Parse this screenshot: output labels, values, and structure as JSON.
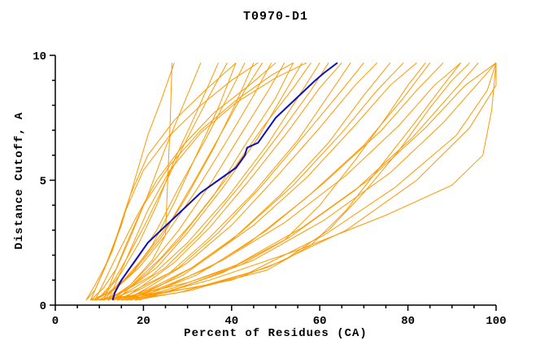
{
  "chart_data": {
    "type": "line",
    "title": "T0970-D1",
    "xlabel": "Percent of Residues (CA)",
    "ylabel": "Distance Cutoff, A",
    "xlim": [
      0,
      100
    ],
    "ylim": [
      0,
      10
    ],
    "xticks": {
      "major": [
        0,
        20,
        40,
        60,
        80,
        100
      ],
      "minor_step": 5
    },
    "yticks": {
      "major": [
        0,
        5,
        10
      ],
      "minor_step": 1
    },
    "grid": false,
    "legend": null,
    "series_color": "#ff9900",
    "highlight_color": "#0f0fbb",
    "axis_color": "#000000",
    "background_color": "#ffffff",
    "curves": [
      [
        [
          7,
          0.2
        ],
        [
          9,
          0.8
        ],
        [
          12,
          1.8
        ],
        [
          15,
          3.2
        ],
        [
          18,
          5.0
        ],
        [
          21,
          6.8
        ],
        [
          24,
          8.2
        ],
        [
          27,
          9.7
        ]
      ],
      [
        [
          8,
          0.2
        ],
        [
          11,
          0.7
        ],
        [
          14,
          1.5
        ],
        [
          17,
          2.7
        ],
        [
          21,
          4.4
        ],
        [
          25,
          6.3
        ],
        [
          29,
          8.0
        ],
        [
          33,
          9.7
        ]
      ],
      [
        [
          9,
          0.2
        ],
        [
          12,
          0.6
        ],
        [
          15,
          1.3
        ],
        [
          19,
          2.5
        ],
        [
          23,
          4.0
        ],
        [
          27,
          5.8
        ],
        [
          32,
          7.7
        ],
        [
          37,
          9.7
        ]
      ],
      [
        [
          10,
          0.3
        ],
        [
          13,
          0.9
        ],
        [
          16,
          1.8
        ],
        [
          20,
          3.1
        ],
        [
          25,
          4.9
        ],
        [
          30,
          6.7
        ],
        [
          35,
          8.4
        ],
        [
          39,
          9.7
        ]
      ],
      [
        [
          8,
          0.2
        ],
        [
          12,
          0.5
        ],
        [
          17,
          1.2
        ],
        [
          22,
          2.4
        ],
        [
          27,
          4.1
        ],
        [
          32,
          6.0
        ],
        [
          37,
          7.9
        ],
        [
          41,
          9.7
        ]
      ],
      [
        [
          11,
          0.2
        ],
        [
          14,
          0.8
        ],
        [
          18,
          1.7
        ],
        [
          23,
          3.0
        ],
        [
          28,
          4.7
        ],
        [
          34,
          6.6
        ],
        [
          39,
          8.3
        ],
        [
          43,
          9.7
        ]
      ],
      [
        [
          9,
          0.2
        ],
        [
          13,
          0.6
        ],
        [
          18,
          1.4
        ],
        [
          24,
          2.7
        ],
        [
          30,
          4.4
        ],
        [
          36,
          6.3
        ],
        [
          41,
          8.1
        ],
        [
          45,
          9.7
        ]
      ],
      [
        [
          12,
          0.2
        ],
        [
          15,
          0.9
        ],
        [
          20,
          1.9
        ],
        [
          26,
          3.3
        ],
        [
          32,
          5.1
        ],
        [
          38,
          7.0
        ],
        [
          43,
          8.6
        ],
        [
          47,
          9.7
        ]
      ],
      [
        [
          10,
          0.2
        ],
        [
          14,
          0.7
        ],
        [
          19,
          1.5
        ],
        [
          25,
          2.8
        ],
        [
          32,
          4.6
        ],
        [
          39,
          6.6
        ],
        [
          45,
          8.4
        ],
        [
          49,
          9.7
        ]
      ],
      [
        [
          13,
          0.2
        ],
        [
          17,
          0.8
        ],
        [
          22,
          1.7
        ],
        [
          28,
          3.0
        ],
        [
          35,
          4.8
        ],
        [
          42,
          6.8
        ],
        [
          48,
          8.5
        ],
        [
          52,
          9.7
        ]
      ],
      [
        [
          11,
          0.2
        ],
        [
          16,
          0.6
        ],
        [
          21,
          1.3
        ],
        [
          28,
          2.6
        ],
        [
          36,
          4.4
        ],
        [
          43,
          6.4
        ],
        [
          50,
          8.3
        ],
        [
          54,
          9.7
        ]
      ],
      [
        [
          12,
          0.2
        ],
        [
          17,
          0.7
        ],
        [
          23,
          1.5
        ],
        [
          30,
          2.9
        ],
        [
          38,
          4.7
        ],
        [
          46,
          6.7
        ],
        [
          52,
          8.5
        ],
        [
          56,
          9.7
        ]
      ],
      [
        [
          14,
          0.2
        ],
        [
          18,
          0.9
        ],
        [
          24,
          1.9
        ],
        [
          31,
          3.3
        ],
        [
          39,
          5.1
        ],
        [
          47,
          7.1
        ],
        [
          54,
          8.7
        ],
        [
          58,
          9.7
        ]
      ],
      [
        [
          10,
          0.2
        ],
        [
          15,
          0.5
        ],
        [
          22,
          1.2
        ],
        [
          30,
          2.5
        ],
        [
          39,
          4.3
        ],
        [
          48,
          6.4
        ],
        [
          55,
          8.3
        ],
        [
          60,
          9.7
        ]
      ],
      [
        [
          13,
          0.2
        ],
        [
          18,
          0.7
        ],
        [
          25,
          1.5
        ],
        [
          33,
          2.9
        ],
        [
          42,
          4.8
        ],
        [
          51,
          6.9
        ],
        [
          58,
          8.6
        ],
        [
          62,
          9.7
        ]
      ],
      [
        [
          15,
          0.2
        ],
        [
          20,
          0.8
        ],
        [
          27,
          1.7
        ],
        [
          35,
          3.1
        ],
        [
          44,
          5.0
        ],
        [
          53,
          7.0
        ],
        [
          60,
          8.7
        ],
        [
          65,
          9.7
        ]
      ],
      [
        [
          12,
          0.2
        ],
        [
          18,
          0.6
        ],
        [
          26,
          1.3
        ],
        [
          35,
          2.7
        ],
        [
          45,
          4.5
        ],
        [
          55,
          6.6
        ],
        [
          62,
          8.4
        ],
        [
          67,
          9.7
        ]
      ],
      [
        [
          14,
          0.2
        ],
        [
          20,
          0.7
        ],
        [
          28,
          1.5
        ],
        [
          37,
          2.9
        ],
        [
          47,
          4.8
        ],
        [
          57,
          6.9
        ],
        [
          65,
          8.6
        ],
        [
          70,
          9.7
        ]
      ],
      [
        [
          16,
          0.2
        ],
        [
          22,
          0.8
        ],
        [
          30,
          1.7
        ],
        [
          40,
          3.2
        ],
        [
          50,
          5.1
        ],
        [
          60,
          7.1
        ],
        [
          68,
          8.8
        ],
        [
          73,
          9.7
        ]
      ],
      [
        [
          13,
          0.2
        ],
        [
          20,
          0.5
        ],
        [
          29,
          1.2
        ],
        [
          40,
          2.6
        ],
        [
          51,
          4.4
        ],
        [
          62,
          6.5
        ],
        [
          70,
          8.4
        ],
        [
          76,
          9.7
        ]
      ],
      [
        [
          15,
          0.2
        ],
        [
          22,
          0.7
        ],
        [
          31,
          1.5
        ],
        [
          42,
          2.9
        ],
        [
          54,
          4.8
        ],
        [
          65,
          6.9
        ],
        [
          73,
          8.6
        ],
        [
          79,
          9.7
        ]
      ],
      [
        [
          17,
          0.2
        ],
        [
          24,
          0.8
        ],
        [
          33,
          1.7
        ],
        [
          45,
          3.2
        ],
        [
          57,
          5.1
        ],
        [
          68,
          7.2
        ],
        [
          76,
          8.8
        ],
        [
          82,
          9.7
        ]
      ],
      [
        [
          14,
          0.2
        ],
        [
          22,
          0.5
        ],
        [
          32,
          1.2
        ],
        [
          44,
          2.5
        ],
        [
          57,
          4.3
        ],
        [
          70,
          6.4
        ],
        [
          79,
          8.3
        ],
        [
          85,
          9.7
        ]
      ],
      [
        [
          16,
          0.2
        ],
        [
          24,
          0.7
        ],
        [
          35,
          1.5
        ],
        [
          48,
          3.0
        ],
        [
          61,
          4.9
        ],
        [
          74,
          7.0
        ],
        [
          82,
          8.6
        ],
        [
          88,
          9.7
        ]
      ],
      [
        [
          18,
          0.2
        ],
        [
          26,
          0.8
        ],
        [
          38,
          1.8
        ],
        [
          52,
          3.3
        ],
        [
          66,
          5.2
        ],
        [
          78,
          7.2
        ],
        [
          86,
          8.8
        ],
        [
          92,
          9.7
        ]
      ],
      [
        [
          15,
          0.2
        ],
        [
          25,
          0.5
        ],
        [
          38,
          1.3
        ],
        [
          53,
          2.7
        ],
        [
          68,
          4.6
        ],
        [
          81,
          6.7
        ],
        [
          90,
          8.5
        ],
        [
          96,
          9.7
        ]
      ],
      [
        [
          17,
          0.2
        ],
        [
          27,
          0.7
        ],
        [
          41,
          1.6
        ],
        [
          56,
          3.1
        ],
        [
          71,
          5.0
        ],
        [
          84,
          7.1
        ],
        [
          93,
          8.8
        ],
        [
          100,
          9.7
        ]
      ],
      [
        [
          19,
          0.2
        ],
        [
          30,
          0.8
        ],
        [
          45,
          1.8
        ],
        [
          61,
          3.4
        ],
        [
          76,
          5.3
        ],
        [
          88,
          7.3
        ],
        [
          96,
          8.9
        ],
        [
          100,
          9.7
        ]
      ],
      [
        [
          16,
          0.2
        ],
        [
          28,
          0.5
        ],
        [
          44,
          1.3
        ],
        [
          61,
          2.8
        ],
        [
          77,
          4.7
        ],
        [
          91,
          6.8
        ],
        [
          98,
          8.6
        ],
        [
          100,
          9.7
        ]
      ],
      [
        [
          18,
          0.2
        ],
        [
          31,
          0.6
        ],
        [
          48,
          1.5
        ],
        [
          66,
          3.0
        ],
        [
          82,
          5.0
        ],
        [
          94,
          7.1
        ],
        [
          100,
          8.8
        ],
        [
          100,
          9.7
        ]
      ],
      [
        [
          12,
          0.2
        ],
        [
          17,
          0.8
        ],
        [
          22,
          1.8
        ],
        [
          25,
          2.8
        ],
        [
          25.5,
          5.0
        ],
        [
          26,
          7.0
        ],
        [
          26.5,
          9.7
        ]
      ],
      [
        [
          20,
          0.3
        ],
        [
          35,
          1.0
        ],
        [
          55,
          2.2
        ],
        [
          75,
          3.6
        ],
        [
          90,
          4.8
        ],
        [
          97,
          6.0
        ],
        [
          99,
          7.8
        ],
        [
          100,
          9.7
        ]
      ],
      [
        [
          8,
          0.2
        ],
        [
          20,
          0.4
        ],
        [
          35,
          0.8
        ],
        [
          48,
          1.4
        ],
        [
          58,
          2.4
        ],
        [
          66,
          3.8
        ],
        [
          74,
          5.6
        ],
        [
          82,
          7.4
        ],
        [
          88,
          8.8
        ],
        [
          92,
          9.7
        ]
      ],
      [
        [
          10,
          0.2
        ],
        [
          25,
          0.5
        ],
        [
          40,
          1.0
        ],
        [
          52,
          1.8
        ],
        [
          62,
          3.0
        ],
        [
          70,
          4.5
        ],
        [
          78,
          6.2
        ],
        [
          85,
          7.9
        ],
        [
          90,
          9.0
        ],
        [
          94,
          9.7
        ]
      ],
      [
        [
          9,
          0.2
        ],
        [
          18,
          0.4
        ],
        [
          30,
          0.9
        ],
        [
          42,
          1.6
        ],
        [
          52,
          2.6
        ],
        [
          60,
          4.0
        ],
        [
          68,
          5.8
        ],
        [
          75,
          7.5
        ],
        [
          80,
          8.8
        ],
        [
          84,
          9.7
        ]
      ],
      [
        [
          8,
          0.2
        ],
        [
          10,
          1.0
        ],
        [
          13,
          2.2
        ],
        [
          16,
          3.8
        ],
        [
          20,
          5.4
        ],
        [
          26,
          6.8
        ],
        [
          33,
          8.0
        ],
        [
          40,
          9.0
        ],
        [
          46,
          9.7
        ]
      ],
      [
        [
          9,
          0.2
        ],
        [
          11,
          0.9
        ],
        [
          14,
          2.0
        ],
        [
          18,
          3.4
        ],
        [
          23,
          5.0
        ],
        [
          29,
          6.4
        ],
        [
          36,
          7.7
        ],
        [
          44,
          8.8
        ],
        [
          50,
          9.7
        ]
      ],
      [
        [
          11,
          0.2
        ],
        [
          13,
          1.1
        ],
        [
          16,
          2.4
        ],
        [
          20,
          4.0
        ],
        [
          26,
          5.6
        ],
        [
          33,
          7.0
        ],
        [
          41,
          8.2
        ],
        [
          49,
          9.2
        ],
        [
          54,
          9.7
        ]
      ],
      [
        [
          7,
          0.2
        ],
        [
          9,
          0.6
        ],
        [
          11,
          1.4
        ],
        [
          14,
          2.8
        ],
        [
          17,
          4.4
        ],
        [
          21,
          6.0
        ],
        [
          27,
          7.4
        ],
        [
          34,
          8.6
        ],
        [
          41,
          9.7
        ]
      ],
      [
        [
          12,
          0.2
        ],
        [
          14,
          1.0
        ],
        [
          17,
          2.2
        ],
        [
          21,
          3.8
        ],
        [
          26,
          5.4
        ],
        [
          33,
          6.9
        ],
        [
          41,
          8.1
        ],
        [
          50,
          9.1
        ],
        [
          57,
          9.7
        ]
      ]
    ],
    "highlight": [
      [
        13,
        0.2
      ],
      [
        13.5,
        0.5
      ],
      [
        15,
        1.0
      ],
      [
        17,
        1.5
      ],
      [
        19,
        2.0
      ],
      [
        21,
        2.5
      ],
      [
        24,
        3.0
      ],
      [
        27,
        3.5
      ],
      [
        30,
        4.0
      ],
      [
        33,
        4.5
      ],
      [
        37,
        5.0
      ],
      [
        41,
        5.5
      ],
      [
        43,
        6.0
      ],
      [
        43.5,
        6.3
      ],
      [
        46,
        6.5
      ],
      [
        48,
        7.0
      ],
      [
        50,
        7.5
      ],
      [
        53,
        8.0
      ],
      [
        56,
        8.5
      ],
      [
        59,
        9.0
      ],
      [
        61,
        9.3
      ],
      [
        64,
        9.7
      ]
    ]
  }
}
